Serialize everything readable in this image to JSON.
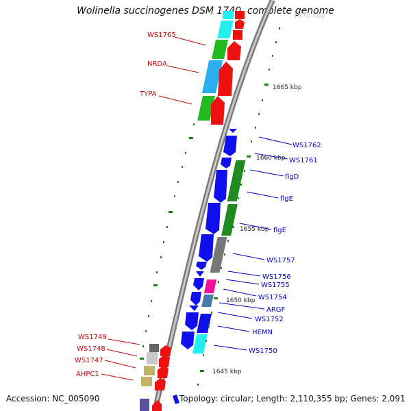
{
  "title": "Wolinella succinogenes DSM 1740, complete genome",
  "accession_text": "Accession: NC_005090",
  "summary_text": "Topology: circular; Length: 2,110,355 bp; Genes: 2,091",
  "colors": {
    "blue": "#1010ee",
    "red": "#ee1111",
    "green": "#22bb22",
    "dark_green": "#1f8a1f",
    "cyan": "#22eeee",
    "sky": "#2ab0f0",
    "gray": "#777777",
    "light_gray": "#c8c8c8",
    "olive": "#c4b26a",
    "magenta": "#ee1199",
    "steel": "#4a7aaa",
    "tick": "#118811",
    "label_red": "#cc0000",
    "label_blue": "#0000cc"
  },
  "ticks": [
    {
      "label": "1665 kbp"
    },
    {
      "label": "1660 kbp"
    },
    {
      "label": "1655 kbp"
    },
    {
      "label": "1650 kbp"
    },
    {
      "label": "1645 kbp"
    }
  ],
  "genes_left": [
    {
      "name": "WS1765"
    },
    {
      "name": "NRDA"
    },
    {
      "name": "TYPA"
    },
    {
      "name": "WS1749"
    },
    {
      "name": "WS1748"
    },
    {
      "name": "WS1747"
    },
    {
      "name": "AHPC1"
    }
  ],
  "genes_right": [
    {
      "name": "WS1762"
    },
    {
      "name": "WS1761"
    },
    {
      "name": "flgD"
    },
    {
      "name": "flgE"
    },
    {
      "name": "flgE"
    },
    {
      "name": "WS1757"
    },
    {
      "name": "WS1756"
    },
    {
      "name": "WS1755"
    },
    {
      "name": "WS1754"
    },
    {
      "name": "ARGF"
    },
    {
      "name": "WS1752"
    },
    {
      "name": "HEMN"
    },
    {
      "name": "WS1750"
    }
  ]
}
